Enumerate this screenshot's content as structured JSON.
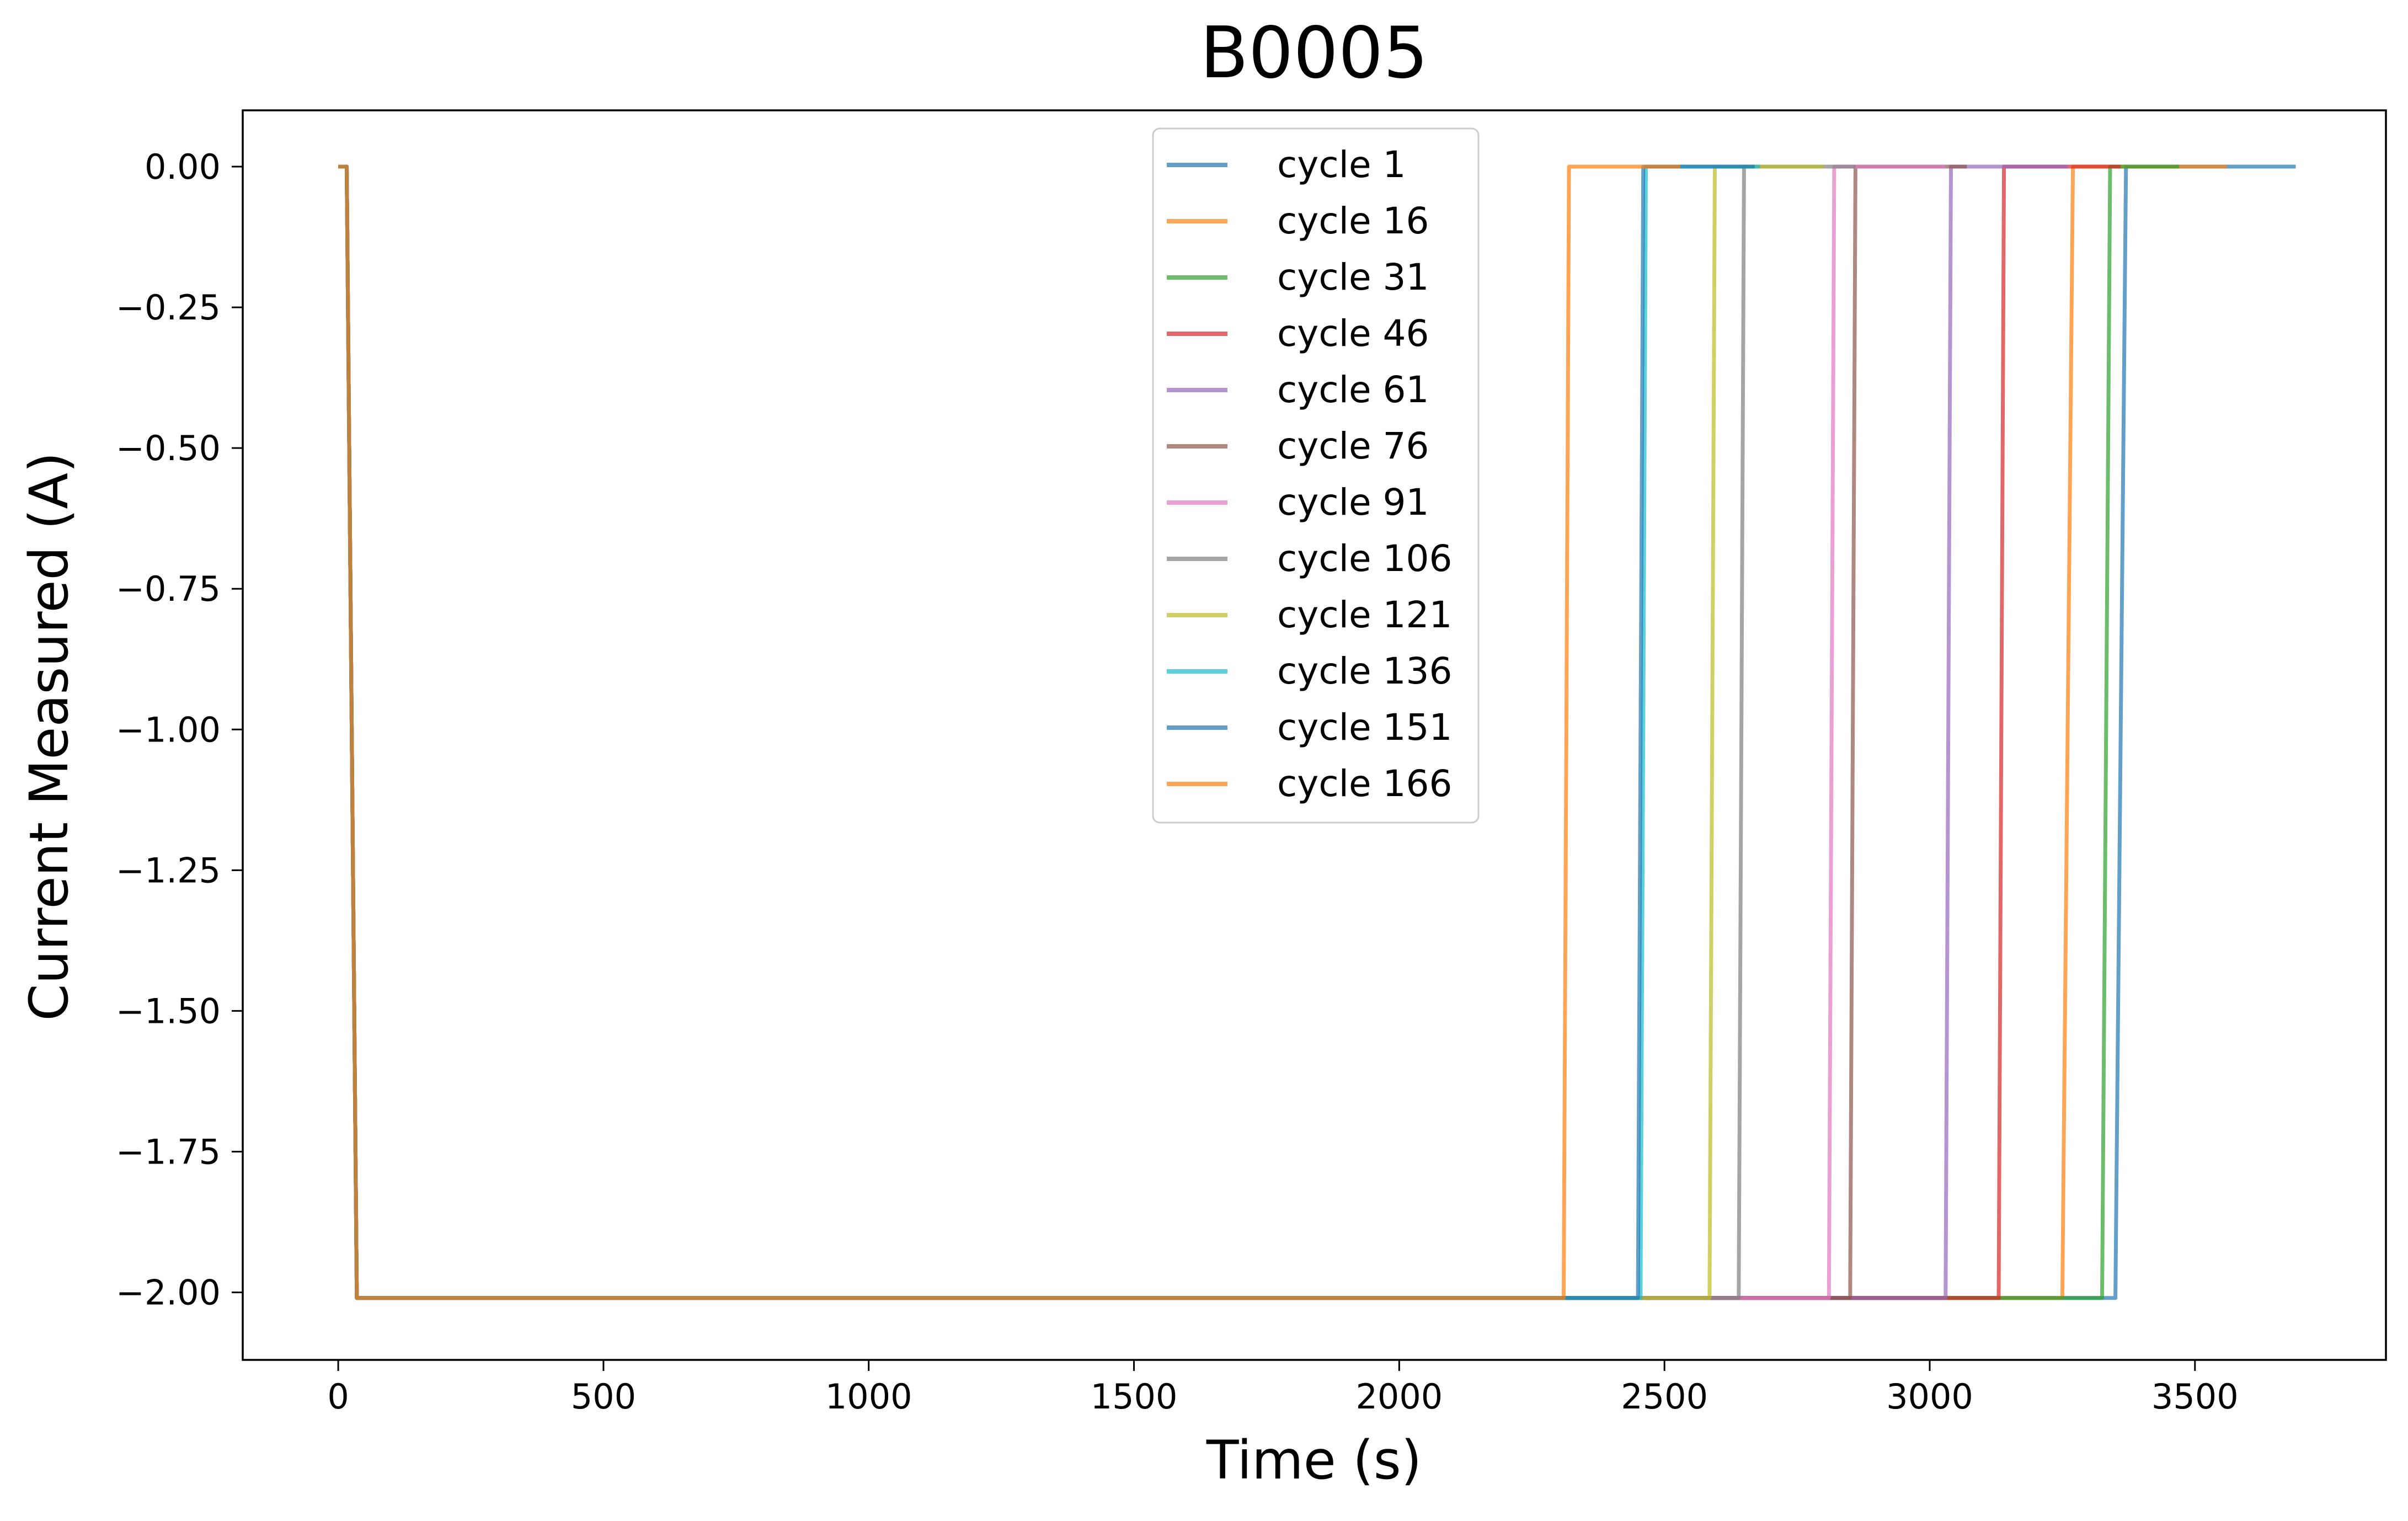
{
  "chart_data": {
    "type": "line",
    "title": "B0005",
    "xlabel": "Time (s)",
    "ylabel": "Current Measured (A)",
    "xlim": [
      -180,
      3860
    ],
    "ylim": [
      -2.12,
      0.1
    ],
    "xticks": [
      0,
      500,
      1000,
      1500,
      2000,
      2500,
      3000,
      3500
    ],
    "xtick_labels": [
      "0",
      "500",
      "1000",
      "1500",
      "2000",
      "2500",
      "3000",
      "3500"
    ],
    "yticks": [
      0.0,
      -0.25,
      -0.5,
      -0.75,
      -1.0,
      -1.25,
      -1.5,
      -1.75,
      -2.0
    ],
    "ytick_labels": [
      "0.00",
      "−0.25",
      "−0.50",
      "−0.75",
      "−1.00",
      "−1.25",
      "−1.50",
      "−1.75",
      "−2.00"
    ],
    "legend_position": "upper-center",
    "grid": false,
    "series": [
      {
        "name": "cycle 1",
        "color": "#1f77b4",
        "x": [
          0,
          16,
          35,
          3350,
          3370,
          3690
        ],
        "y": [
          0.0,
          0.0,
          -2.01,
          -2.01,
          0.0,
          0.0
        ]
      },
      {
        "name": "cycle 16",
        "color": "#ff7f0e",
        "x": [
          0,
          16,
          35,
          3250,
          3270,
          3560
        ],
        "y": [
          0.0,
          0.0,
          -2.01,
          -2.01,
          0.0,
          0.0
        ]
      },
      {
        "name": "cycle 31",
        "color": "#2ca02c",
        "x": [
          0,
          16,
          35,
          3325,
          3340,
          3470
        ],
        "y": [
          0.0,
          0.0,
          -2.01,
          -2.01,
          0.0,
          0.0
        ]
      },
      {
        "name": "cycle 46",
        "color": "#d62728",
        "x": [
          0,
          16,
          35,
          3130,
          3140,
          3360
        ],
        "y": [
          0.0,
          0.0,
          -2.01,
          -2.01,
          0.0,
          0.0
        ]
      },
      {
        "name": "cycle 61",
        "color": "#9467bd",
        "x": [
          0,
          16,
          35,
          3030,
          3040,
          3260
        ],
        "y": [
          0.0,
          0.0,
          -2.01,
          -2.01,
          0.0,
          0.0
        ]
      },
      {
        "name": "cycle 76",
        "color": "#8c564b",
        "x": [
          0,
          16,
          35,
          2850,
          2860,
          3070
        ],
        "y": [
          0.0,
          0.0,
          -2.01,
          -2.01,
          0.0,
          0.0
        ]
      },
      {
        "name": "cycle 91",
        "color": "#e377c2",
        "x": [
          0,
          16,
          35,
          2810,
          2820,
          3030
        ],
        "y": [
          0.0,
          0.0,
          -2.01,
          -2.01,
          0.0,
          0.0
        ]
      },
      {
        "name": "cycle 106",
        "color": "#7f7f7f",
        "x": [
          0,
          16,
          35,
          2640,
          2650,
          2860
        ],
        "y": [
          0.0,
          0.0,
          -2.01,
          -2.01,
          0.0,
          0.0
        ]
      },
      {
        "name": "cycle 121",
        "color": "#bcbd22",
        "x": [
          0,
          16,
          35,
          2585,
          2595,
          2800
        ],
        "y": [
          0.0,
          0.0,
          -2.01,
          -2.01,
          0.0,
          0.0
        ]
      },
      {
        "name": "cycle 136",
        "color": "#17becf",
        "x": [
          0,
          16,
          35,
          2455,
          2465,
          2680
        ],
        "y": [
          0.0,
          0.0,
          -2.01,
          -2.01,
          0.0,
          0.0
        ]
      },
      {
        "name": "cycle 151",
        "color": "#1f77b4",
        "x": [
          0,
          16,
          35,
          2450,
          2460,
          2670
        ],
        "y": [
          0.0,
          0.0,
          -2.01,
          -2.01,
          0.0,
          0.0
        ]
      },
      {
        "name": "cycle 166",
        "color": "#ff7f0e",
        "x": [
          0,
          16,
          35,
          2310,
          2320,
          2530
        ],
        "y": [
          0.0,
          0.0,
          -2.01,
          -2.01,
          0.0,
          0.0
        ]
      }
    ]
  }
}
